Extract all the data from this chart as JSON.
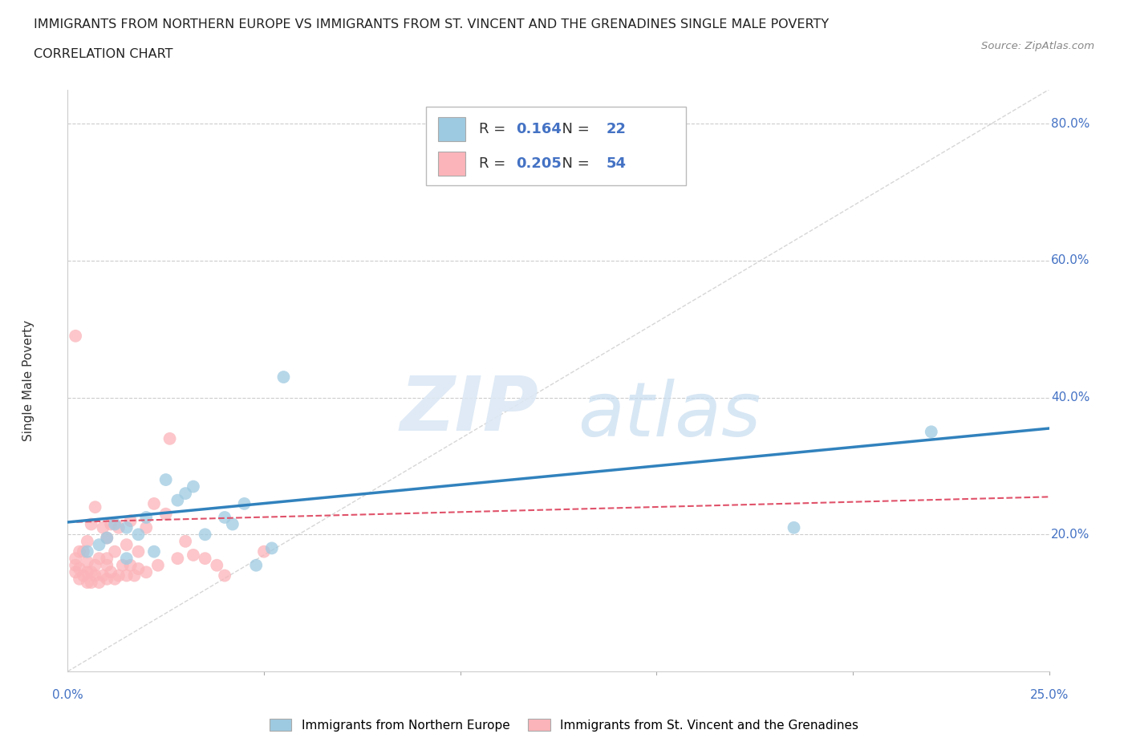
{
  "title_line1": "IMMIGRANTS FROM NORTHERN EUROPE VS IMMIGRANTS FROM ST. VINCENT AND THE GRENADINES SINGLE MALE POVERTY",
  "title_line2": "CORRELATION CHART",
  "source": "Source: ZipAtlas.com",
  "ylabel": "Single Male Poverty",
  "legend_label1": "Immigrants from Northern Europe",
  "legend_label2": "Immigrants from St. Vincent and the Grenadines",
  "R1": 0.164,
  "N1": 22,
  "R2": 0.205,
  "N2": 54,
  "blue_color": "#9ecae1",
  "pink_color": "#fbb4b9",
  "blue_line_color": "#3182bd",
  "pink_line_color": "#e0526a",
  "background_color": "#ffffff",
  "xlim": [
    0.0,
    0.25
  ],
  "ylim": [
    0.0,
    0.85
  ],
  "ytick_positions": [
    0.2,
    0.4,
    0.6,
    0.8
  ],
  "ytick_labels": [
    "20.0%",
    "40.0%",
    "60.0%",
    "80.0%"
  ],
  "xtick_left_label": "0.0%",
  "xtick_right_label": "25.0%",
  "blue_x": [
    0.005,
    0.008,
    0.01,
    0.012,
    0.015,
    0.015,
    0.018,
    0.02,
    0.022,
    0.025,
    0.028,
    0.03,
    0.032,
    0.04,
    0.042,
    0.045,
    0.048,
    0.052,
    0.055,
    0.185,
    0.22,
    0.035
  ],
  "blue_y": [
    0.175,
    0.185,
    0.195,
    0.215,
    0.165,
    0.21,
    0.2,
    0.225,
    0.175,
    0.28,
    0.25,
    0.26,
    0.27,
    0.225,
    0.215,
    0.245,
    0.155,
    0.18,
    0.43,
    0.21,
    0.35,
    0.2
  ],
  "pink_x": [
    0.002,
    0.002,
    0.002,
    0.003,
    0.003,
    0.003,
    0.004,
    0.004,
    0.005,
    0.005,
    0.005,
    0.005,
    0.006,
    0.006,
    0.006,
    0.007,
    0.007,
    0.007,
    0.008,
    0.008,
    0.009,
    0.009,
    0.01,
    0.01,
    0.01,
    0.01,
    0.011,
    0.011,
    0.012,
    0.012,
    0.013,
    0.013,
    0.014,
    0.015,
    0.015,
    0.016,
    0.016,
    0.017,
    0.018,
    0.018,
    0.02,
    0.02,
    0.022,
    0.023,
    0.025,
    0.026,
    0.028,
    0.03,
    0.032,
    0.035,
    0.038,
    0.04,
    0.05,
    0.002
  ],
  "pink_y": [
    0.145,
    0.155,
    0.165,
    0.135,
    0.15,
    0.175,
    0.14,
    0.175,
    0.13,
    0.145,
    0.16,
    0.19,
    0.13,
    0.145,
    0.215,
    0.14,
    0.155,
    0.24,
    0.13,
    0.165,
    0.14,
    0.21,
    0.135,
    0.155,
    0.165,
    0.195,
    0.145,
    0.215,
    0.135,
    0.175,
    0.14,
    0.21,
    0.155,
    0.14,
    0.185,
    0.155,
    0.22,
    0.14,
    0.15,
    0.175,
    0.145,
    0.21,
    0.245,
    0.155,
    0.23,
    0.34,
    0.165,
    0.19,
    0.17,
    0.165,
    0.155,
    0.14,
    0.175,
    0.49
  ],
  "watermark_zip": "ZIP",
  "watermark_atlas": "atlas"
}
